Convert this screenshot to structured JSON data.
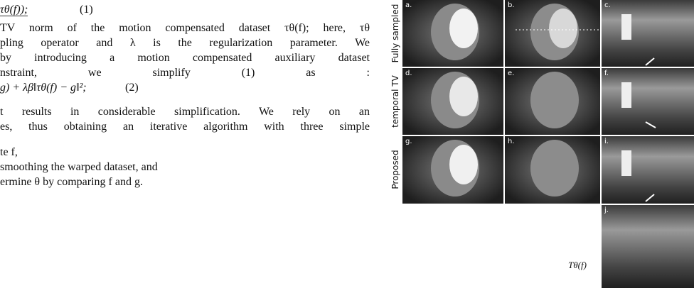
{
  "text": {
    "equation1": {
      "expr": "τθ(f));",
      "number": "(1)"
    },
    "lines": [
      "TV norm of the motion compensated dataset τθ(f); here, τθ",
      "pling operator and λ is the regularization parameter. We",
      "by introducing a motion compensated auxiliary dataset",
      "nstraint, we simplify (1) as :"
    ],
    "equation2": {
      "expr": "g) + λβ‖τθ(f) − g‖²;",
      "number": "(2)"
    },
    "lines2": [
      "t results in considerable simplification. We rely on an",
      "es, thus obtaining an iterative algorithm with three simple"
    ],
    "steps": [
      "te f,",
      "smoothing the warped dataset, and",
      "ermine θ by comparing f and g."
    ]
  },
  "figure": {
    "row_labels": [
      "Fully sampled",
      "temporal TV",
      "Proposed"
    ],
    "panel_labels": [
      "a.",
      "b.",
      "c.",
      "d.",
      "e.",
      "f.",
      "g.",
      "h.",
      "i.",
      "j."
    ],
    "j_caption": "Tθ(f)"
  }
}
